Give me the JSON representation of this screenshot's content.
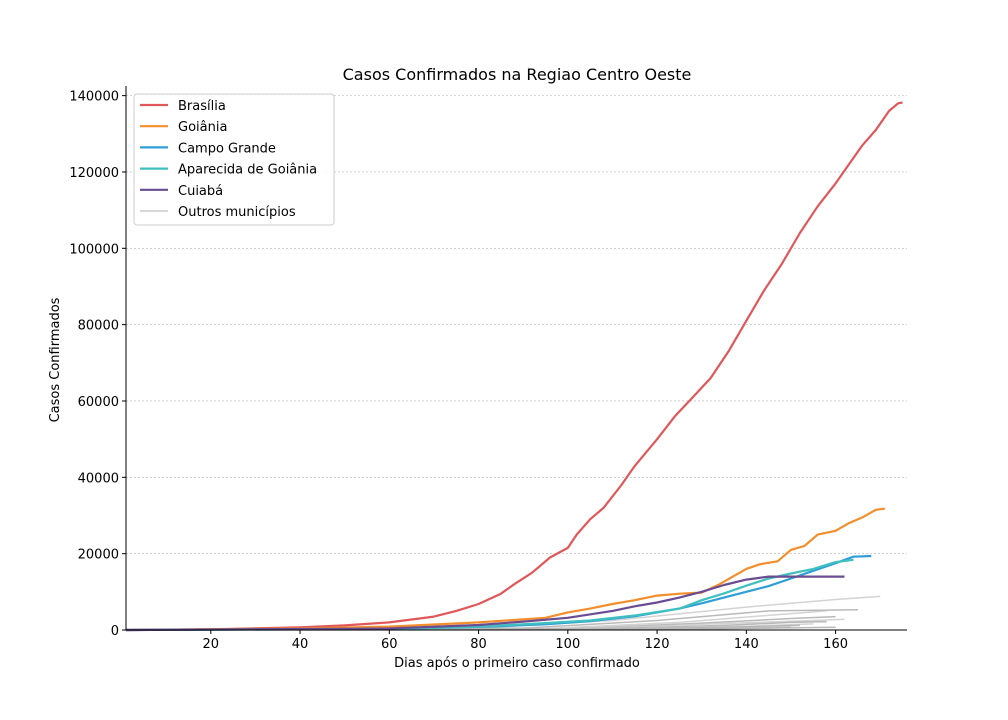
{
  "chart_data": {
    "type": "line",
    "title": "Casos Confirmados na Regiao Centro Oeste",
    "xlabel": "Dias após o primeiro caso confirmado",
    "ylabel": "Casos Confirmados",
    "xlim": [
      1,
      176
    ],
    "ylim": [
      0,
      142000
    ],
    "xticks": [
      20,
      40,
      60,
      80,
      100,
      120,
      140,
      160
    ],
    "yticks": [
      0,
      20000,
      40000,
      60000,
      80000,
      100000,
      120000,
      140000
    ],
    "grid": "horizontal-dotted",
    "legend_position": "top-left",
    "legend": [
      "Brasília",
      "Goiânia",
      "Campo Grande",
      "Aparecida de Goiânia",
      "Cuiabá",
      "Outros municípios"
    ],
    "series": [
      {
        "name": "Brasília",
        "color": "#e15759",
        "points": [
          [
            1,
            0
          ],
          [
            20,
            150
          ],
          [
            40,
            700
          ],
          [
            50,
            1200
          ],
          [
            60,
            2000
          ],
          [
            70,
            3500
          ],
          [
            75,
            5000
          ],
          [
            80,
            6800
          ],
          [
            85,
            9500
          ],
          [
            88,
            12000
          ],
          [
            92,
            15000
          ],
          [
            96,
            19000
          ],
          [
            100,
            21500
          ],
          [
            102,
            25000
          ],
          [
            105,
            29000
          ],
          [
            108,
            32000
          ],
          [
            112,
            38000
          ],
          [
            115,
            43000
          ],
          [
            120,
            50000
          ],
          [
            124,
            56000
          ],
          [
            128,
            61000
          ],
          [
            132,
            66000
          ],
          [
            136,
            73000
          ],
          [
            140,
            81000
          ],
          [
            144,
            89000
          ],
          [
            148,
            96000
          ],
          [
            152,
            104000
          ],
          [
            156,
            111000
          ],
          [
            160,
            117000
          ],
          [
            163,
            122000
          ],
          [
            166,
            127000
          ],
          [
            169,
            131000
          ],
          [
            172,
            136000
          ],
          [
            174,
            138000
          ],
          [
            175,
            138200
          ]
        ]
      },
      {
        "name": "Goiânia",
        "color": "#f28e2b",
        "points": [
          [
            1,
            0
          ],
          [
            40,
            400
          ],
          [
            60,
            900
          ],
          [
            80,
            2000
          ],
          [
            95,
            3200
          ],
          [
            100,
            4600
          ],
          [
            105,
            5600
          ],
          [
            110,
            6800
          ],
          [
            115,
            7800
          ],
          [
            120,
            9000
          ],
          [
            125,
            9500
          ],
          [
            130,
            9800
          ],
          [
            134,
            12000
          ],
          [
            137,
            14000
          ],
          [
            140,
            16000
          ],
          [
            143,
            17200
          ],
          [
            147,
            18000
          ],
          [
            150,
            21000
          ],
          [
            153,
            22000
          ],
          [
            156,
            25000
          ],
          [
            160,
            26000
          ],
          [
            163,
            28000
          ],
          [
            166,
            29500
          ],
          [
            169,
            31500
          ],
          [
            171,
            31800
          ]
        ]
      },
      {
        "name": "Campo Grande",
        "color": "#2f9fd8",
        "points": [
          [
            1,
            0
          ],
          [
            60,
            300
          ],
          [
            80,
            800
          ],
          [
            95,
            1500
          ],
          [
            105,
            2300
          ],
          [
            115,
            3600
          ],
          [
            125,
            5600
          ],
          [
            130,
            7000
          ],
          [
            135,
            8500
          ],
          [
            140,
            10000
          ],
          [
            145,
            11500
          ],
          [
            150,
            13500
          ],
          [
            155,
            15500
          ],
          [
            160,
            17500
          ],
          [
            164,
            19200
          ],
          [
            168,
            19400
          ]
        ]
      },
      {
        "name": "Aparecida de Goiânia",
        "color": "#3fbfbf",
        "points": [
          [
            1,
            0
          ],
          [
            60,
            300
          ],
          [
            80,
            900
          ],
          [
            95,
            1800
          ],
          [
            105,
            2500
          ],
          [
            115,
            3800
          ],
          [
            125,
            5600
          ],
          [
            130,
            7800
          ],
          [
            135,
            9600
          ],
          [
            140,
            11600
          ],
          [
            145,
            13500
          ],
          [
            150,
            14800
          ],
          [
            155,
            16000
          ],
          [
            160,
            17800
          ],
          [
            164,
            18400
          ]
        ]
      },
      {
        "name": "Cuiabá",
        "color": "#6a4c93",
        "points": [
          [
            1,
            0
          ],
          [
            60,
            400
          ],
          [
            80,
            1300
          ],
          [
            90,
            2200
          ],
          [
            100,
            3200
          ],
          [
            110,
            5000
          ],
          [
            115,
            6200
          ],
          [
            120,
            7200
          ],
          [
            125,
            8500
          ],
          [
            130,
            10000
          ],
          [
            135,
            11800
          ],
          [
            140,
            13200
          ],
          [
            145,
            14000
          ],
          [
            150,
            14000
          ],
          [
            162,
            14000
          ]
        ]
      },
      {
        "name": "Outros municípios",
        "color": "#cccccc",
        "lines": [
          [
            [
              1,
              0
            ],
            [
              80,
              500
            ],
            [
              110,
              2500
            ],
            [
              140,
              6000
            ],
            [
              160,
              8000
            ],
            [
              170,
              8800
            ]
          ],
          [
            [
              1,
              0
            ],
            [
              90,
              500
            ],
            [
              120,
              2500
            ],
            [
              145,
              5000
            ],
            [
              165,
              5300
            ]
          ],
          [
            [
              1,
              0
            ],
            [
              95,
              400
            ],
            [
              125,
              2000
            ],
            [
              150,
              4300
            ],
            [
              158,
              5000
            ]
          ],
          [
            [
              1,
              0
            ],
            [
              100,
              300
            ],
            [
              130,
              1800
            ],
            [
              150,
              3000
            ],
            [
              160,
              3500
            ]
          ],
          [
            [
              1,
              0
            ],
            [
              100,
              250
            ],
            [
              130,
              1500
            ],
            [
              155,
              2500
            ],
            [
              162,
              2800
            ]
          ],
          [
            [
              1,
              0
            ],
            [
              105,
              200
            ],
            [
              135,
              1200
            ],
            [
              150,
              2000
            ],
            [
              158,
              2200
            ]
          ],
          [
            [
              1,
              0
            ],
            [
              110,
              150
            ],
            [
              140,
              1000
            ],
            [
              155,
              1600
            ]
          ],
          [
            [
              1,
              0
            ],
            [
              110,
              120
            ],
            [
              140,
              800
            ],
            [
              152,
              1200
            ]
          ],
          [
            [
              1,
              0
            ],
            [
              115,
              100
            ],
            [
              140,
              600
            ],
            [
              150,
              800
            ]
          ],
          [
            [
              1,
              0
            ],
            [
              120,
              80
            ],
            [
              145,
              500
            ],
            [
              160,
              700
            ]
          ]
        ]
      }
    ]
  }
}
